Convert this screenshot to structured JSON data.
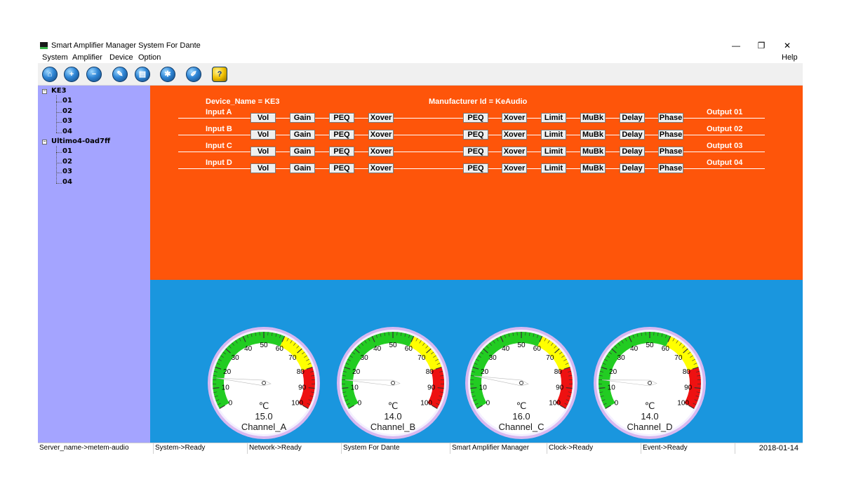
{
  "window": {
    "title": "Smart Amplifier Manager System For Dante",
    "controls": {
      "minimize": "—",
      "restore": "❐",
      "close": "✕"
    }
  },
  "menu": [
    "System",
    "Amplifier",
    "Device",
    "Option"
  ],
  "help_label": "Help",
  "toolbar": [
    {
      "icon": "home-icon",
      "glyph": "⌂"
    },
    {
      "icon": "add-icon",
      "glyph": "+"
    },
    {
      "icon": "remove-icon",
      "glyph": "−"
    },
    {
      "icon": "edit-icon",
      "glyph": "✎"
    },
    {
      "icon": "save-icon",
      "glyph": "▤"
    },
    {
      "icon": "settings-icon",
      "glyph": "✱"
    },
    {
      "icon": "tools-icon",
      "glyph": "✐"
    },
    {
      "icon": "help-icon",
      "glyph": "?"
    }
  ],
  "tree": {
    "devices": [
      {
        "name": "KE3",
        "channels": [
          "01",
          "02",
          "03",
          "04"
        ]
      },
      {
        "name": "Ultimo4-0ad7ff",
        "channels": [
          "01",
          "02",
          "03",
          "04"
        ]
      }
    ]
  },
  "routing": {
    "device_name": "Device_Name = KE3",
    "manufacturer_id": "Manufacturer Id = KeAudio",
    "inputs": [
      "Input A",
      "Input B",
      "Input C",
      "Input D"
    ],
    "outputs": [
      "Output 01",
      "Output 02",
      "Output 03",
      "Output 04"
    ],
    "input_blocks": [
      "Vol",
      "Gain",
      "PEQ",
      "Xover"
    ],
    "output_blocks": [
      "PEQ",
      "Xover",
      "Limit",
      "MuBk",
      "Delay",
      "Phase"
    ]
  },
  "gauges": {
    "unit": "℃",
    "scale_labels": [
      "0",
      "10",
      "20",
      "30",
      "40",
      "50",
      "60",
      "70",
      "80",
      "90",
      "100"
    ],
    "zones": {
      "green_max": 60,
      "yellow_max": 80,
      "max": 100
    },
    "colors": {
      "green": "#22cc22",
      "yellow": "#ffff00",
      "red": "#ee1111"
    },
    "channels": [
      {
        "name": "Channel_A",
        "value": "15.0",
        "temp": 15.0
      },
      {
        "name": "Channel_B",
        "value": "14.0",
        "temp": 14.0
      },
      {
        "name": "Channel_C",
        "value": "16.0",
        "temp": 16.0
      },
      {
        "name": "Channel_D",
        "value": "14.0",
        "temp": 14.0
      }
    ]
  },
  "status": {
    "server": "Server_name->metem-audio",
    "system": "System->Ready",
    "network": "Network->Ready",
    "product": "System For Dante",
    "manager": "Smart Amplifier Manager",
    "clock": "Clock->Ready",
    "event": "Event->Ready",
    "date": "2018-01-14"
  },
  "colors": {
    "routing_bg": "#fe550a",
    "gauge_bg": "#1a96de",
    "tree_bg": "#a4a4ff"
  }
}
